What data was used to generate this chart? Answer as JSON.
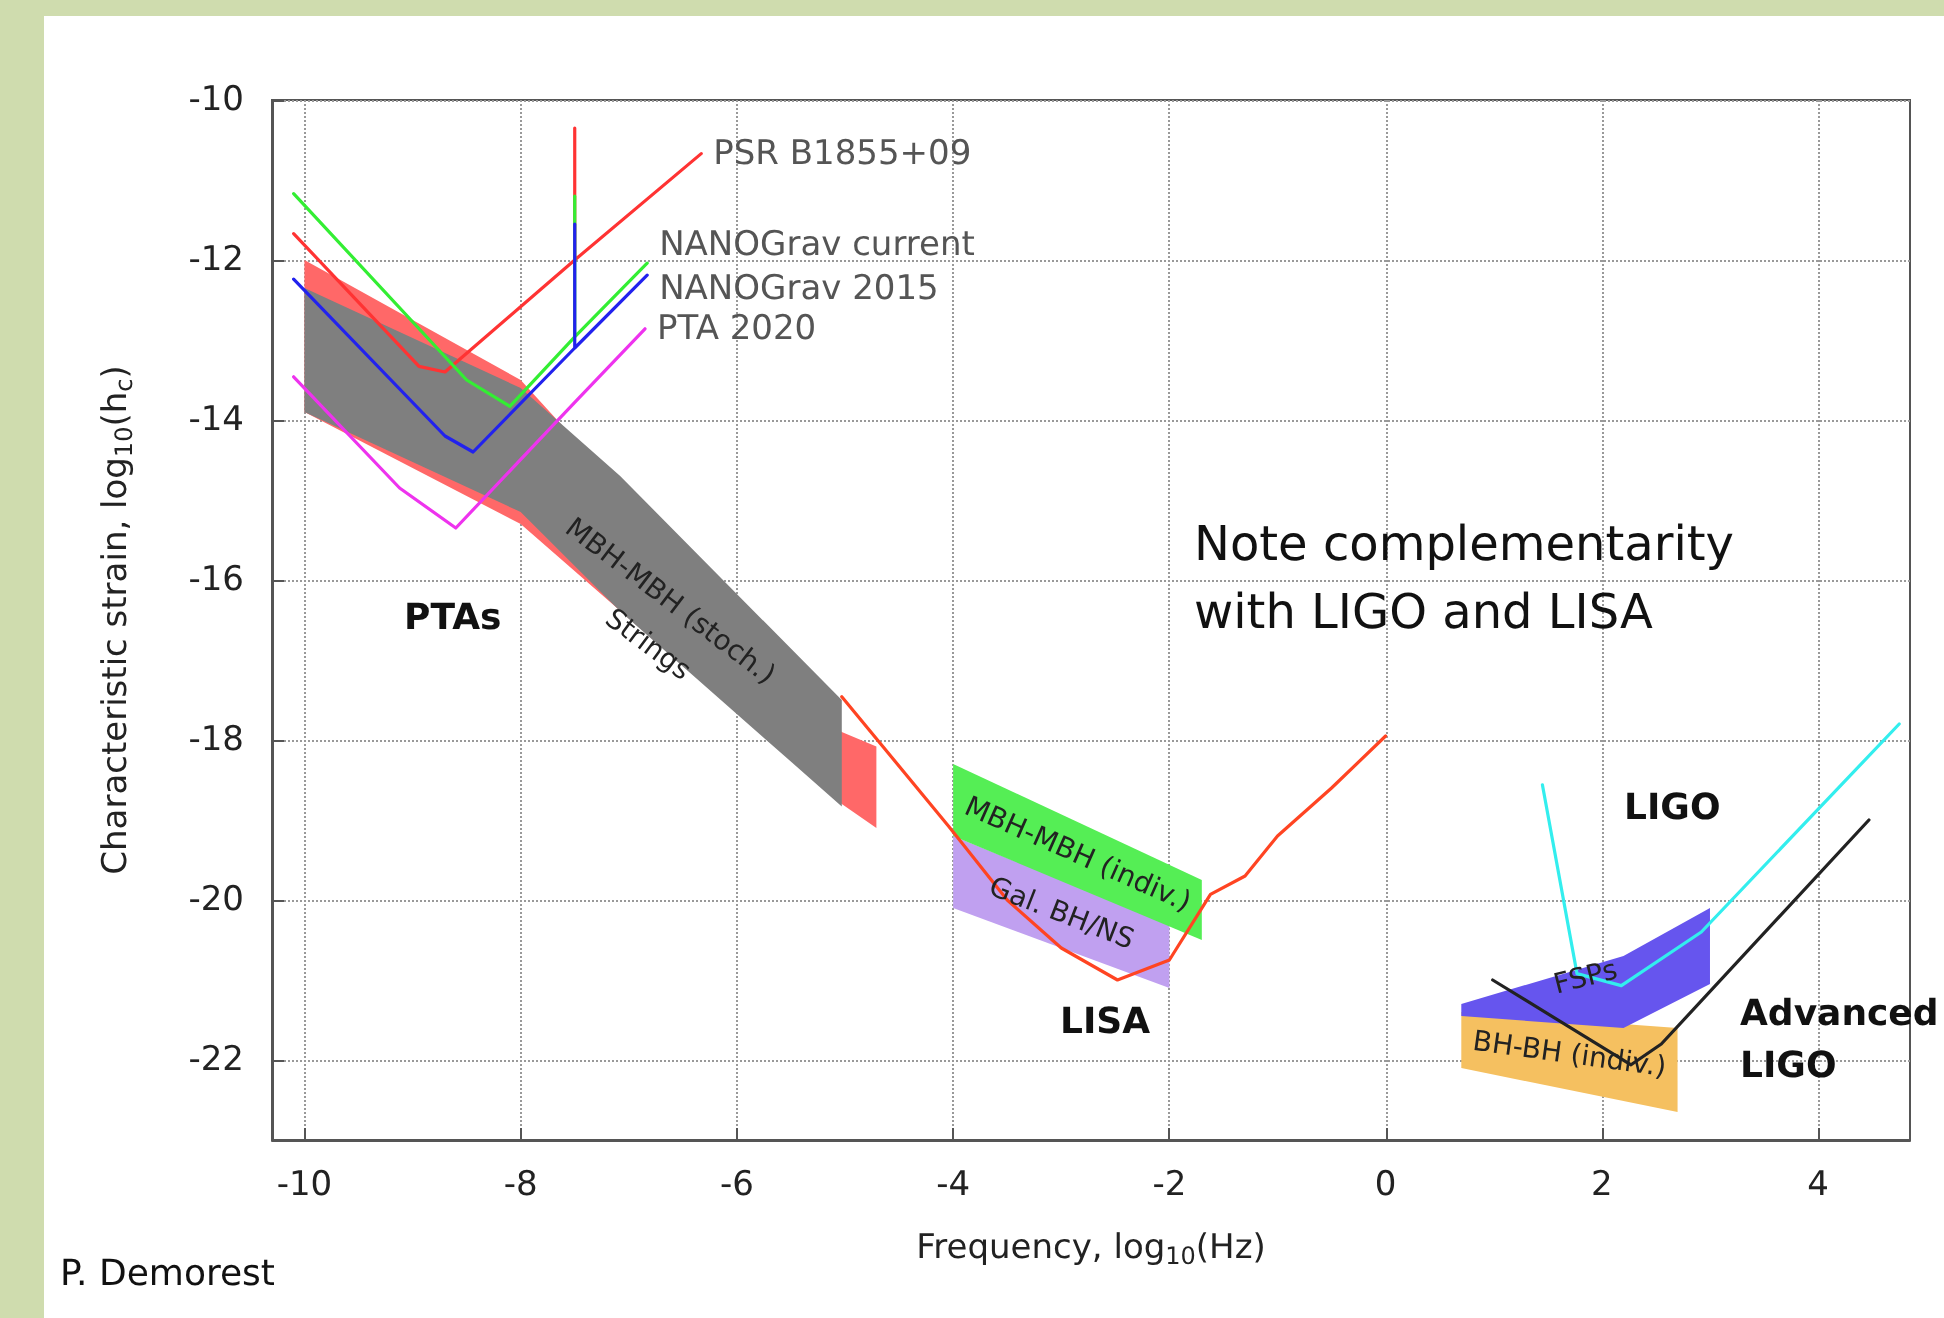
{
  "chart_data": {
    "type": "line",
    "xlabel": "Frequency, log$_{10}$(Hz)",
    "ylabel": "Characteristic strain, log$_{10}$(h$_{c}$)",
    "xlim": [
      -10.3,
      4.85
    ],
    "xticks": [
      -10,
      -8,
      -6,
      -4,
      -2,
      0,
      2,
      4
    ],
    "ylim": [
      -23,
      -10
    ],
    "yticks": [
      -22,
      -20,
      -18,
      -16,
      -14,
      -12,
      -10
    ],
    "grid": true,
    "marker": "none",
    "series": [
      {
        "type": "area",
        "name": "Strings",
        "color": "#ff6868",
        "x": [
          -10,
          -8,
          -5.03,
          -4.71,
          -4.71,
          -5.03,
          -8,
          -10
        ],
        "values": [
          -12.0,
          -13.5,
          -17.9,
          -18.08,
          -19.1,
          -18.8,
          -15.3,
          -13.9
        ]
      },
      {
        "type": "area",
        "name": "MBH-MBH (stoch.)",
        "color": "#7f7f7f",
        "x": [
          -10,
          -8,
          -7.08,
          -5.03,
          -5.03,
          -7.08,
          -8,
          -10
        ],
        "values": [
          -12.35,
          -13.6,
          -14.7,
          -17.5,
          -18.83,
          -16.39,
          -15.15,
          -13.9
        ]
      },
      {
        "type": "area",
        "name": "Gal. BH/NS",
        "color": "#c0a0f0",
        "x": [
          -4,
          -2,
          -2,
          -4
        ],
        "values": [
          -19.2,
          -20.3,
          -21.1,
          -20.1
        ]
      },
      {
        "type": "area",
        "name": "MBH-MBH (indiv.)",
        "color": "#55ee55",
        "x": [
          -4,
          -1.7,
          -1.7,
          -4
        ],
        "values": [
          -18.3,
          -19.75,
          -20.5,
          -19.2
        ]
      },
      {
        "type": "area",
        "name": "BH-BH (indiv.)",
        "color": "#f5c060",
        "x": [
          0.7,
          2.7,
          2.7,
          0.7
        ],
        "values": [
          -21.4,
          -21.6,
          -22.65,
          -22.1
        ]
      },
      {
        "type": "area",
        "name": "FSPs",
        "color": "#6655ee",
        "x": [
          0.7,
          2.2,
          3.0,
          3.0,
          2.2,
          0.7
        ],
        "values": [
          -21.3,
          -20.7,
          -20.1,
          -21.05,
          -21.6,
          -21.45
        ]
      },
      {
        "name": "PSR B1855+09",
        "color": "#ff3333",
        "x": [
          -10.1,
          -8.94,
          -8.7,
          -7.5,
          -7.5,
          -7.5,
          -6.33
        ],
        "values": [
          -11.67,
          -13.33,
          -13.4,
          -12.0,
          -10.35,
          -12.0,
          -10.67
        ]
      },
      {
        "name": "NANOGrav current",
        "color": "#33ee33",
        "x": [
          -10.1,
          -8.5,
          -8.1,
          -7.5,
          -7.5,
          -7.5,
          -6.83
        ],
        "values": [
          -11.17,
          -13.5,
          -13.83,
          -12.96,
          -11.2,
          -12.96,
          -12.04
        ]
      },
      {
        "name": "NANOGrav 2015",
        "color": "#2222ee",
        "x": [
          -10.1,
          -8.7,
          -8.44,
          -7.5,
          -7.5,
          -7.5,
          -6.83
        ],
        "values": [
          -12.24,
          -14.2,
          -14.4,
          -13.1,
          -11.55,
          -13.1,
          -12.19
        ]
      },
      {
        "name": "PTA 2020",
        "color": "#ee33ee",
        "x": [
          -10.1,
          -9.12,
          -8.6,
          -7.5,
          -6.85
        ],
        "values": [
          -13.46,
          -14.85,
          -15.35,
          -13.78,
          -12.86
        ]
      },
      {
        "color": "#ff4422",
        "x": [
          -5.03,
          -4.04,
          -3.5,
          -3,
          -2.48,
          -2,
          -1.62,
          -1.3,
          -1,
          -0.5,
          0
        ],
        "values": [
          -17.46,
          -19.08,
          -20.0,
          -20.6,
          -21.0,
          -20.75,
          -19.93,
          -19.7,
          -19.2,
          -18.6,
          -17.95
        ]
      },
      {
        "color": "#33eeee",
        "x": [
          1.45,
          1.77,
          2.18,
          2.92,
          4.75
        ],
        "values": [
          -18.56,
          -20.92,
          -21.07,
          -20.4,
          -17.8
        ]
      },
      {
        "color": "#222222",
        "x": [
          0.99,
          2.27,
          2.55,
          4.47
        ],
        "values": [
          -21.0,
          -22.06,
          -21.8,
          -19.0
        ]
      }
    ],
    "annotations": [
      "Note complementarity\nwith LIGO and LISA",
      "P. Demorest",
      "PTAs",
      "LISA",
      "LIGO",
      "Advanced\nLIGO"
    ]
  }
}
